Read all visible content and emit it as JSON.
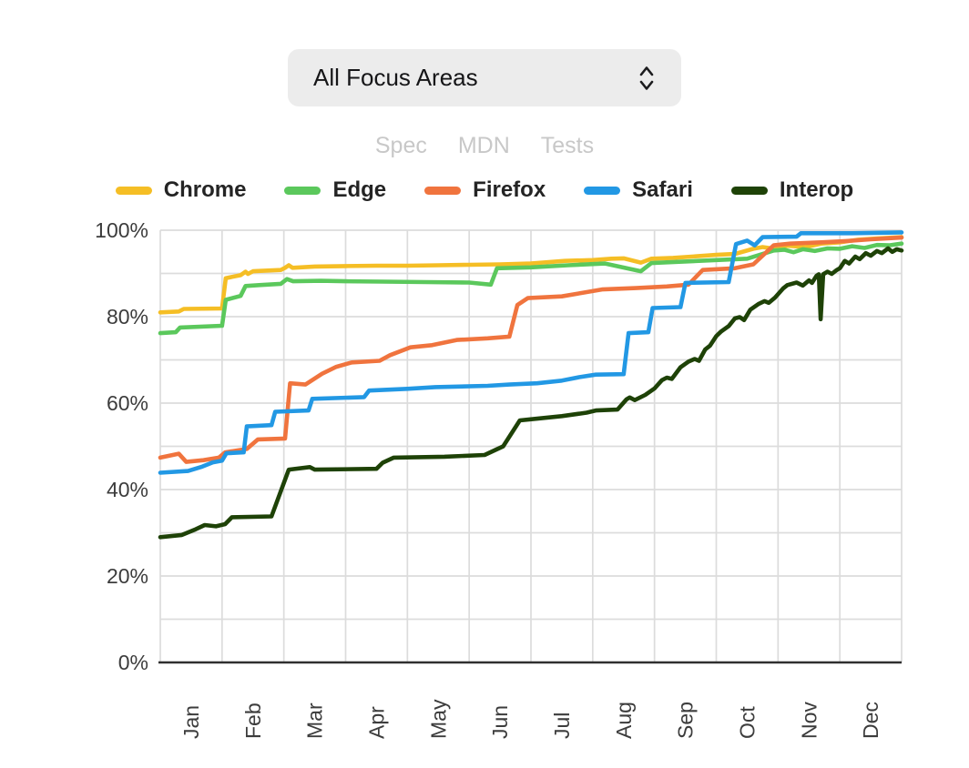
{
  "select": {
    "value": "All Focus Areas",
    "icon": "chevron-up-down-icon"
  },
  "links": [
    {
      "label": "Spec"
    },
    {
      "label": "MDN"
    },
    {
      "label": "Tests"
    }
  ],
  "legend": [
    {
      "label": "Chrome"
    },
    {
      "label": "Edge"
    },
    {
      "label": "Firefox"
    },
    {
      "label": "Safari"
    },
    {
      "label": "Interop"
    }
  ],
  "colors": {
    "grid": "#dcdcdc",
    "axis": "#2f2f2f",
    "tick_text": "#3c3c3c",
    "link_text": "#c8c8c8",
    "select_bg": "#ececec"
  },
  "chart_data": {
    "type": "line",
    "title": "",
    "xlabel": "",
    "ylabel": "",
    "xlim": [
      0,
      12
    ],
    "ylim": [
      0,
      100
    ],
    "grid": true,
    "legend_position": "top",
    "x_tick_labels": [
      "Jan",
      "Feb",
      "Mar",
      "Apr",
      "May",
      "Jun",
      "Jul",
      "Aug",
      "Sep",
      "Oct",
      "Nov",
      "Dec"
    ],
    "y_tick_labels": [
      "0%",
      "20%",
      "40%",
      "60%",
      "80%",
      "100%"
    ],
    "y_tick_values": [
      0,
      20,
      40,
      60,
      80,
      100
    ],
    "y_minor_grid_step": 10,
    "series": [
      {
        "name": "Chrome",
        "color": "#f5be25",
        "points": [
          [
            0,
            81.0
          ],
          [
            0.3,
            81.2
          ],
          [
            0.38,
            81.8
          ],
          [
            1.0,
            81.9
          ],
          [
            1.06,
            88.9
          ],
          [
            1.3,
            89.6
          ],
          [
            1.38,
            90.4
          ],
          [
            1.42,
            89.9
          ],
          [
            1.5,
            90.5
          ],
          [
            1.95,
            90.8
          ],
          [
            2.02,
            91.3
          ],
          [
            2.08,
            91.9
          ],
          [
            2.14,
            91.3
          ],
          [
            2.5,
            91.6
          ],
          [
            3.0,
            91.7
          ],
          [
            3.5,
            91.8
          ],
          [
            4.0,
            91.8
          ],
          [
            4.5,
            91.9
          ],
          [
            5.0,
            92.0
          ],
          [
            5.5,
            92.1
          ],
          [
            6.0,
            92.3
          ],
          [
            6.55,
            92.9
          ],
          [
            7.0,
            93.1
          ],
          [
            7.3,
            93.4
          ],
          [
            7.5,
            93.5
          ],
          [
            7.78,
            92.5
          ],
          [
            7.95,
            93.4
          ],
          [
            8.3,
            93.6
          ],
          [
            8.6,
            93.9
          ],
          [
            9.0,
            94.3
          ],
          [
            9.3,
            94.5
          ],
          [
            9.6,
            95.7
          ],
          [
            9.75,
            96.1
          ],
          [
            9.9,
            95.8
          ],
          [
            10.15,
            96.4
          ],
          [
            10.45,
            96.1
          ],
          [
            10.7,
            96.9
          ],
          [
            11.0,
            97.2
          ],
          [
            11.3,
            97.8
          ],
          [
            11.6,
            98.1
          ],
          [
            12,
            98.4
          ]
        ]
      },
      {
        "name": "Edge",
        "color": "#5bc85c",
        "points": [
          [
            0,
            76.2
          ],
          [
            0.25,
            76.4
          ],
          [
            0.32,
            77.5
          ],
          [
            1.0,
            77.9
          ],
          [
            1.06,
            83.9
          ],
          [
            1.3,
            84.8
          ],
          [
            1.38,
            87.1
          ],
          [
            1.6,
            87.3
          ],
          [
            1.95,
            87.6
          ],
          [
            2.05,
            88.7
          ],
          [
            2.15,
            88.2
          ],
          [
            2.6,
            88.3
          ],
          [
            3.0,
            88.2
          ],
          [
            3.6,
            88.1
          ],
          [
            4.3,
            88.0
          ],
          [
            5.0,
            87.9
          ],
          [
            5.35,
            87.4
          ],
          [
            5.45,
            91.2
          ],
          [
            6.0,
            91.4
          ],
          [
            6.6,
            91.9
          ],
          [
            7.2,
            92.3
          ],
          [
            7.78,
            90.5
          ],
          [
            7.95,
            92.4
          ],
          [
            8.4,
            92.7
          ],
          [
            9.0,
            93.1
          ],
          [
            9.5,
            93.4
          ],
          [
            9.93,
            95.3
          ],
          [
            10.1,
            95.5
          ],
          [
            10.25,
            94.9
          ],
          [
            10.4,
            95.6
          ],
          [
            10.6,
            95.2
          ],
          [
            10.8,
            95.8
          ],
          [
            11.0,
            95.7
          ],
          [
            11.2,
            96.3
          ],
          [
            11.4,
            95.9
          ],
          [
            11.6,
            96.6
          ],
          [
            11.8,
            96.5
          ],
          [
            12,
            96.9
          ]
        ]
      },
      {
        "name": "Firefox",
        "color": "#f0743e",
        "points": [
          [
            0,
            47.4
          ],
          [
            0.3,
            48.3
          ],
          [
            0.42,
            46.4
          ],
          [
            0.7,
            46.8
          ],
          [
            0.95,
            47.4
          ],
          [
            1.05,
            48.6
          ],
          [
            1.4,
            49.4
          ],
          [
            1.58,
            51.6
          ],
          [
            2.02,
            51.8
          ],
          [
            2.1,
            64.6
          ],
          [
            2.35,
            64.3
          ],
          [
            2.62,
            66.8
          ],
          [
            2.85,
            68.4
          ],
          [
            3.1,
            69.4
          ],
          [
            3.55,
            69.8
          ],
          [
            3.72,
            71.1
          ],
          [
            4.05,
            72.9
          ],
          [
            4.4,
            73.4
          ],
          [
            4.8,
            74.6
          ],
          [
            5.3,
            75.0
          ],
          [
            5.65,
            75.4
          ],
          [
            5.78,
            82.7
          ],
          [
            5.95,
            84.3
          ],
          [
            6.5,
            84.7
          ],
          [
            7.15,
            86.3
          ],
          [
            7.7,
            86.6
          ],
          [
            8.2,
            87.0
          ],
          [
            8.55,
            87.4
          ],
          [
            8.78,
            90.8
          ],
          [
            9.3,
            91.2
          ],
          [
            9.6,
            92.1
          ],
          [
            9.93,
            96.5
          ],
          [
            10.2,
            96.9
          ],
          [
            10.7,
            97.2
          ],
          [
            11.1,
            97.5
          ],
          [
            11.5,
            97.9
          ],
          [
            12,
            98.3
          ]
        ]
      },
      {
        "name": "Safari",
        "color": "#2298e4",
        "points": [
          [
            0,
            43.9
          ],
          [
            0.45,
            44.3
          ],
          [
            0.68,
            45.3
          ],
          [
            0.85,
            46.3
          ],
          [
            1.0,
            46.7
          ],
          [
            1.07,
            48.4
          ],
          [
            1.35,
            48.6
          ],
          [
            1.4,
            54.6
          ],
          [
            1.8,
            54.9
          ],
          [
            1.86,
            58.0
          ],
          [
            2.4,
            58.3
          ],
          [
            2.46,
            61.0
          ],
          [
            3.3,
            61.4
          ],
          [
            3.38,
            62.9
          ],
          [
            4.0,
            63.3
          ],
          [
            4.45,
            63.7
          ],
          [
            5.3,
            64.0
          ],
          [
            5.65,
            64.3
          ],
          [
            6.1,
            64.6
          ],
          [
            6.5,
            65.2
          ],
          [
            6.78,
            66.0
          ],
          [
            7.05,
            66.6
          ],
          [
            7.5,
            66.7
          ],
          [
            7.58,
            76.2
          ],
          [
            7.9,
            76.4
          ],
          [
            7.97,
            82.0
          ],
          [
            8.42,
            82.2
          ],
          [
            8.5,
            87.8
          ],
          [
            9.2,
            88.0
          ],
          [
            9.32,
            96.8
          ],
          [
            9.5,
            97.6
          ],
          [
            9.62,
            96.5
          ],
          [
            9.75,
            98.4
          ],
          [
            10.3,
            98.5
          ],
          [
            10.37,
            99.3
          ],
          [
            11.2,
            99.3
          ],
          [
            12,
            99.5
          ]
        ]
      },
      {
        "name": "Interop",
        "color": "#1e4207",
        "points": [
          [
            0,
            29.0
          ],
          [
            0.35,
            29.5
          ],
          [
            0.57,
            30.8
          ],
          [
            0.72,
            31.8
          ],
          [
            0.9,
            31.5
          ],
          [
            1.05,
            32.0
          ],
          [
            1.16,
            33.6
          ],
          [
            1.8,
            33.8
          ],
          [
            2.08,
            44.6
          ],
          [
            2.42,
            45.2
          ],
          [
            2.5,
            44.6
          ],
          [
            3.5,
            44.8
          ],
          [
            3.6,
            46.2
          ],
          [
            3.78,
            47.4
          ],
          [
            4.6,
            47.6
          ],
          [
            5.25,
            48.0
          ],
          [
            5.55,
            50.0
          ],
          [
            5.82,
            56.0
          ],
          [
            6.1,
            56.4
          ],
          [
            6.5,
            57.0
          ],
          [
            6.9,
            57.8
          ],
          [
            7.05,
            58.3
          ],
          [
            7.4,
            58.5
          ],
          [
            7.55,
            60.9
          ],
          [
            7.6,
            61.3
          ],
          [
            7.68,
            60.7
          ],
          [
            7.85,
            61.9
          ],
          [
            8.0,
            63.4
          ],
          [
            8.12,
            65.3
          ],
          [
            8.2,
            65.9
          ],
          [
            8.28,
            65.6
          ],
          [
            8.42,
            68.3
          ],
          [
            8.55,
            69.6
          ],
          [
            8.65,
            70.2
          ],
          [
            8.72,
            69.8
          ],
          [
            8.82,
            72.4
          ],
          [
            8.9,
            73.3
          ],
          [
            9.0,
            75.5
          ],
          [
            9.08,
            76.6
          ],
          [
            9.2,
            77.8
          ],
          [
            9.3,
            79.6
          ],
          [
            9.38,
            79.9
          ],
          [
            9.45,
            79.2
          ],
          [
            9.55,
            81.6
          ],
          [
            9.68,
            82.9
          ],
          [
            9.78,
            83.6
          ],
          [
            9.85,
            83.2
          ],
          [
            9.95,
            84.4
          ],
          [
            10.08,
            86.5
          ],
          [
            10.15,
            87.3
          ],
          [
            10.3,
            87.9
          ],
          [
            10.4,
            87.2
          ],
          [
            10.5,
            88.4
          ],
          [
            10.55,
            87.8
          ],
          [
            10.62,
            89.4
          ],
          [
            10.66,
            89.8
          ],
          [
            10.69,
            79.4
          ],
          [
            10.73,
            89.8
          ],
          [
            10.8,
            90.4
          ],
          [
            10.87,
            89.9
          ],
          [
            10.95,
            90.8
          ],
          [
            11.0,
            91.2
          ],
          [
            11.08,
            92.9
          ],
          [
            11.15,
            92.3
          ],
          [
            11.25,
            93.9
          ],
          [
            11.32,
            93.3
          ],
          [
            11.42,
            94.7
          ],
          [
            11.5,
            94.1
          ],
          [
            11.6,
            95.2
          ],
          [
            11.68,
            94.7
          ],
          [
            11.78,
            95.8
          ],
          [
            11.85,
            95.0
          ],
          [
            11.92,
            95.6
          ],
          [
            12,
            95.3
          ]
        ]
      }
    ]
  }
}
